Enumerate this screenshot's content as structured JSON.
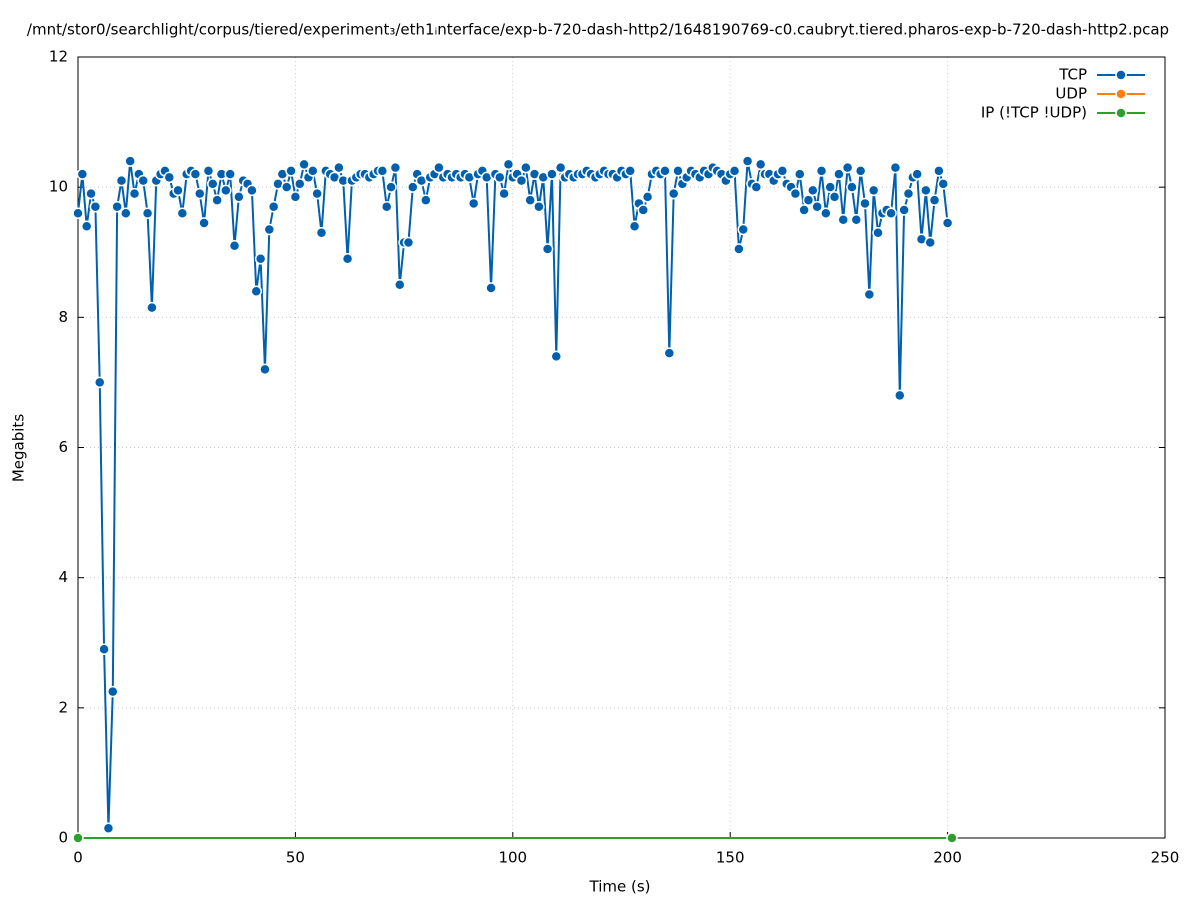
{
  "chart_data": {
    "type": "line",
    "title": "/mnt/stor0/searchlight/corpus/tiered/experiment₃/eth1ᵢnterface/exp-b-720-dash-http2/1648190769-c0.caubryt.tiered.pharos-exp-b-720-dash-http2.pcap",
    "x_label": "Time (s)",
    "y_label": "Megabits",
    "xlim": [
      0,
      250
    ],
    "xticks": [
      0,
      50,
      100,
      150,
      200,
      250
    ],
    "ylim": [
      0,
      12
    ],
    "yticks": [
      0,
      2,
      4,
      6,
      8,
      10,
      12
    ],
    "grid": true,
    "legend": "top-right",
    "series": [
      {
        "name": "TCP",
        "color": "#0060ad",
        "x": [
          0,
          1,
          2,
          3,
          4,
          5,
          6,
          7,
          8,
          9,
          10,
          11,
          12,
          13,
          14,
          15,
          16,
          17,
          18,
          19,
          20,
          21,
          22,
          23,
          24,
          25,
          26,
          27,
          28,
          29,
          30,
          31,
          32,
          33,
          34,
          35,
          36,
          37,
          38,
          39,
          40,
          41,
          42,
          43,
          44,
          45,
          46,
          47,
          48,
          49,
          50,
          51,
          52,
          53,
          54,
          55,
          56,
          57,
          58,
          59,
          60,
          61,
          62,
          63,
          64,
          65,
          66,
          67,
          68,
          69,
          70,
          71,
          72,
          73,
          74,
          75,
          76,
          77,
          78,
          79,
          80,
          81,
          82,
          83,
          84,
          85,
          86,
          87,
          88,
          89,
          90,
          91,
          92,
          93,
          94,
          95,
          96,
          97,
          98,
          99,
          100,
          101,
          102,
          103,
          104,
          105,
          106,
          107,
          108,
          109,
          110,
          111,
          112,
          113,
          114,
          115,
          116,
          117,
          118,
          119,
          120,
          121,
          122,
          123,
          124,
          125,
          126,
          127,
          128,
          129,
          130,
          131,
          132,
          133,
          134,
          135,
          136,
          137,
          138,
          139,
          140,
          141,
          142,
          143,
          144,
          145,
          146,
          147,
          148,
          149,
          150,
          151,
          152,
          153,
          154,
          155,
          156,
          157,
          158,
          159,
          160,
          161,
          162,
          163,
          164,
          165,
          166,
          167,
          168,
          169,
          170,
          171,
          172,
          173,
          174,
          175,
          176,
          177,
          178,
          179,
          180,
          181,
          182,
          183,
          184,
          185,
          186,
          187,
          188,
          189,
          190,
          191,
          192,
          193,
          194,
          195,
          196,
          197,
          198,
          199,
          200
        ],
        "values": [
          9.6,
          10.2,
          9.4,
          9.9,
          9.7,
          7.0,
          2.9,
          0.15,
          2.25,
          9.7,
          10.1,
          9.6,
          10.4,
          9.9,
          10.2,
          10.1,
          9.6,
          8.15,
          10.1,
          10.2,
          10.25,
          10.15,
          9.9,
          9.95,
          9.6,
          10.2,
          10.25,
          10.2,
          9.9,
          9.45,
          10.25,
          10.05,
          9.8,
          10.2,
          9.95,
          10.2,
          9.1,
          9.85,
          10.1,
          10.05,
          9.95,
          8.4,
          8.9,
          7.2,
          9.35,
          9.7,
          10.05,
          10.2,
          10.0,
          10.25,
          9.85,
          10.05,
          10.35,
          10.15,
          10.25,
          9.9,
          9.3,
          10.25,
          10.2,
          10.15,
          10.3,
          10.1,
          8.9,
          10.1,
          10.15,
          10.2,
          10.2,
          10.15,
          10.2,
          10.25,
          10.25,
          9.7,
          10.0,
          10.3,
          8.5,
          9.15,
          9.15,
          10.0,
          10.2,
          10.1,
          9.8,
          10.15,
          10.2,
          10.3,
          10.15,
          10.2,
          10.15,
          10.2,
          10.15,
          10.2,
          10.15,
          9.75,
          10.2,
          10.25,
          10.15,
          8.45,
          10.2,
          10.15,
          9.9,
          10.35,
          10.15,
          10.2,
          10.1,
          10.3,
          9.8,
          10.2,
          9.7,
          10.15,
          9.05,
          10.2,
          7.4,
          10.3,
          10.15,
          10.2,
          10.15,
          10.2,
          10.2,
          10.25,
          10.2,
          10.15,
          10.2,
          10.25,
          10.2,
          10.2,
          10.15,
          10.25,
          10.2,
          10.25,
          9.4,
          9.75,
          9.65,
          9.85,
          10.2,
          10.25,
          10.2,
          10.25,
          7.45,
          9.9,
          10.25,
          10.05,
          10.15,
          10.25,
          10.2,
          10.15,
          10.25,
          10.2,
          10.3,
          10.25,
          10.2,
          10.1,
          10.2,
          10.25,
          9.05,
          9.35,
          10.4,
          10.05,
          10.0,
          10.35,
          10.2,
          10.2,
          10.1,
          10.2,
          10.25,
          10.05,
          10.0,
          9.9,
          10.2,
          9.65,
          9.8,
          9.95,
          9.7,
          10.25,
          9.6,
          10.0,
          9.85,
          10.2,
          9.5,
          10.3,
          10.0,
          9.5,
          10.25,
          9.75,
          8.35,
          9.95,
          9.3,
          9.6,
          9.65,
          9.6,
          10.3,
          6.8,
          9.65,
          9.9,
          10.15,
          10.2,
          9.2,
          9.95,
          9.15,
          9.8,
          10.25,
          10.05,
          9.45
        ]
      },
      {
        "name": "UDP",
        "color": "#ff7f0e",
        "x": [],
        "values": []
      },
      {
        "name": "IP (!TCP  !UDP)",
        "color": "#2ca02c",
        "x": [
          0,
          201
        ],
        "values": [
          0,
          0
        ]
      }
    ]
  }
}
